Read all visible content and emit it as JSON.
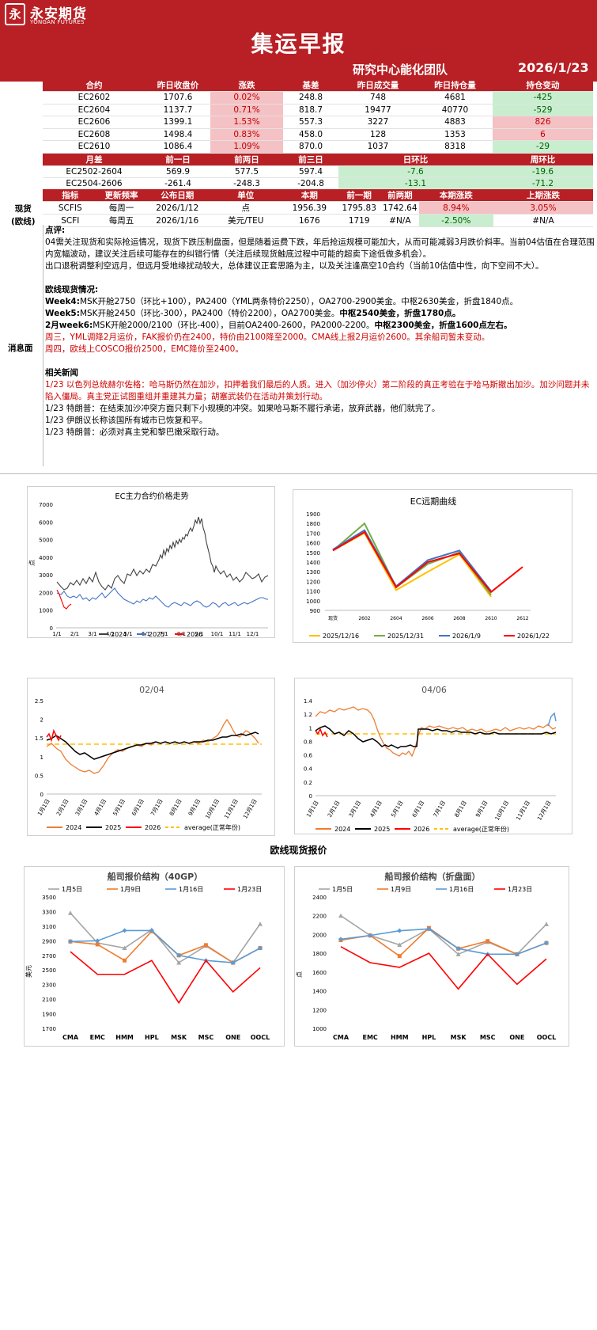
{
  "header": {
    "logo_mark": "永",
    "logo_cn": "永安期货",
    "logo_en": "YONGAN FUTURES",
    "title": "集运早报",
    "team": "研究中心能化团队",
    "date": "2026/1/23"
  },
  "contracts": {
    "headers": [
      "合约",
      "昨日收盘价",
      "涨跌",
      "基差",
      "昨日成交量",
      "昨日持仓量",
      "持仓变动"
    ],
    "rows": [
      [
        "EC2602",
        "1707.6",
        "0.02%",
        "248.8",
        "748",
        "4681",
        "-425"
      ],
      [
        "EC2604",
        "1137.7",
        "0.71%",
        "818.7",
        "19477",
        "40770",
        "-529"
      ],
      [
        "EC2606",
        "1399.1",
        "1.53%",
        "557.3",
        "3227",
        "4883",
        "826"
      ],
      [
        "EC2608",
        "1498.4",
        "0.83%",
        "458.0",
        "128",
        "1353",
        "6"
      ],
      [
        "EC2610",
        "1086.4",
        "1.09%",
        "870.0",
        "1037",
        "8318",
        "-29"
      ]
    ]
  },
  "spreads": {
    "headers": [
      "月差",
      "前一日",
      "前两日",
      "前三日",
      "日环比",
      "周环比"
    ],
    "rows": [
      [
        "EC2502-2604",
        "569.9",
        "577.5",
        "597.4",
        "-7.6",
        "-19.6"
      ],
      [
        "EC2504-2606",
        "-261.4",
        "-248.3",
        "-204.8",
        "-13.1",
        "-71.2"
      ]
    ]
  },
  "spot": {
    "label_line1": "现货",
    "label_line2": "(欧线)",
    "headers": [
      "指标",
      "更新频率",
      "公布日期",
      "单位",
      "本期",
      "前一期",
      "前两期",
      "本期涨跌",
      "上期涨跌"
    ],
    "rows": [
      [
        "SCFIS",
        "每周一",
        "2026/1/12",
        "点",
        "1956.39",
        "1795.83",
        "1742.64",
        "8.94%",
        "3.05%"
      ],
      [
        "SCFI",
        "每周五",
        "2026/1/16",
        "美元/TEU",
        "1676",
        "1719",
        "#N/A",
        "-2.50%",
        "#N/A"
      ]
    ]
  },
  "comment_label": "消息面",
  "comment": {
    "title": "点评:",
    "p1": "04需关注现货和实际抢运情况，现货下跌压制盘面，但是随着运费下跌，年后抢运规模可能加大，从而可能减弱3月跌价斜率。当前04估值在合理范围内宽幅波动，建议关注后续可能存在的纠错行情（关注后续现货触底过程中可能的超卖下途低做多机会）。",
    "p2": "出口退税调整利空远月，但远月受地缘扰动较大，总体建议正套思路为主，以及关注逢高空10合约（当前10估值中性，向下空间不大）。",
    "spot_title": "欧线现货情况:",
    "w4_label": "Week4:",
    "w4": "MSK开舱2750（环比+100），PA2400（YML两条特价2250），OA2700-2900美金。中枢2630美金，折盘1840点。",
    "w5_label": "Week5:",
    "w5": "MSK开舱2450（环比-300），PA2400（特价2200），OA2700美金。",
    "w5_bold": "中枢2540美金，折盘1780点。",
    "w6_label": "2月week6:",
    "w6": "MSK开舱2000/2100（环比-400），目前OA2400-2600，PA2000-2200。",
    "w6_bold": "中枢2300美金，折盘1600点左右。",
    "red1": "周三，YML调降2月运价，FAK报价仍在2400，特价由2100降至2000。CMA线上报2月运价2600。其余船司暂未变动。",
    "red2": "周四，欧线上COSCO报价2500，EMC降价至2400。",
    "news_title": "相关新闻",
    "news_red": "1/23 以色列总统赫尔佐格：哈马斯仍然在加沙，扣押着我们最后的人质。进入（加沙停火）第二阶段的真正考验在于哈马斯撤出加沙。加沙问题并未陷入僵局。真主党正试图重组并重建其力量；胡塞武装仍在活动并策划行动。",
    "news1": "1/23 特朗普：在结束加沙冲突方面只剩下小规模的冲突。如果哈马斯不履行承诺，放弃武器，他们就完了。",
    "news2": "1/23 伊朗议长称该国所有城市已恢复和平。",
    "news3": "1/23 特朗普：必须对真主党和黎巴嫩采取行动。"
  },
  "charts": {
    "c1": {
      "title": "EC主力合约价格走势",
      "ylabel": "点",
      "yticks": [
        "0",
        "1000",
        "2000",
        "3000",
        "4000",
        "5000",
        "6000",
        "7000"
      ],
      "xticks": [
        "1/1",
        "2/1",
        "3/1",
        "4/1",
        "5/1",
        "6/1",
        "7/1",
        "8/1",
        "9/1",
        "10/1",
        "11/1",
        "12/1"
      ],
      "legend": [
        "2024",
        "2025",
        "2026"
      ],
      "colors": [
        "#404040",
        "#4472c4",
        "#ff0000"
      ]
    },
    "c2": {
      "title": "EC远期曲线",
      "yticks": [
        "900",
        "1000",
        "1100",
        "1200",
        "1300",
        "1400",
        "1500",
        "1600",
        "1700",
        "1800",
        "1900"
      ],
      "xticks": [
        "现货",
        "2602",
        "2604",
        "2606",
        "2608",
        "2610",
        "2612"
      ],
      "legend": [
        "2025/12/16",
        "2025/12/31",
        "2026/1/9",
        "2026/1/22"
      ],
      "colors": [
        "#ffc000",
        "#70ad47",
        "#4472c4",
        "#ff0000"
      ]
    },
    "c3": {
      "title": "02/04",
      "yticks": [
        "0",
        "0.5",
        "1",
        "1.5",
        "2",
        "2.5"
      ],
      "legend": [
        "2024",
        "2025",
        "2026",
        "average(正常年份)"
      ],
      "colors": [
        "#ed7d31",
        "#000000",
        "#ff0000",
        "#ffc000"
      ]
    },
    "c4": {
      "title": "04/06",
      "yticks": [
        "0",
        "0.2",
        "0.4",
        "0.6",
        "0.8",
        "1",
        "1.2",
        "1.4"
      ],
      "legend": [
        "2024",
        "2025",
        "2026",
        "average(正常年份)"
      ],
      "colors": [
        "#ed7d31",
        "#000000",
        "#ff0000",
        "#ffc000"
      ]
    },
    "month_ticks": [
      "1月1日",
      "2月1日",
      "3月1日",
      "4月1日",
      "5月1日",
      "6月1日",
      "7月1日",
      "8月1日",
      "9月1日",
      "10月1日",
      "11月1日",
      "12月1日"
    ],
    "section_title": "欧线现货报价",
    "c5": {
      "title": "船司报价结构（40GP）",
      "ylabel": "美元",
      "yticks": [
        "1700",
        "1900",
        "2100",
        "2300",
        "2500",
        "2700",
        "2900",
        "3100",
        "3300",
        "3500"
      ],
      "carriers": [
        "CMA",
        "EMC",
        "HMM",
        "HPL",
        "MSK",
        "MSC",
        "ONE",
        "OOCL"
      ],
      "legend": [
        "1月5日",
        "1月9日",
        "1月16日",
        "1月23日"
      ],
      "colors": [
        "#a5a5a5",
        "#ed7d31",
        "#5b9bd5",
        "#ff0000"
      ]
    },
    "c6": {
      "title": "船司报价结构（折盘面）",
      "ylabel": "点",
      "yticks": [
        "1000",
        "1200",
        "1400",
        "1600",
        "1800",
        "2000",
        "2200",
        "2400"
      ],
      "carriers": [
        "CMA",
        "EMC",
        "HMM",
        "HPL",
        "MSK",
        "MSC",
        "ONE",
        "OOCL"
      ],
      "legend": [
        "1月5日",
        "1月9日",
        "1月16日",
        "1月23日"
      ],
      "colors": [
        "#a5a5a5",
        "#ed7d31",
        "#5b9bd5",
        "#ff0000"
      ]
    }
  },
  "chart_data": [
    {
      "type": "line",
      "title": "EC远期曲线",
      "categories": [
        "现货",
        "2602",
        "2604",
        "2606",
        "2608",
        "2610",
        "2612"
      ],
      "ylim": [
        900,
        1900
      ],
      "series": [
        {
          "name": "2025/12/16",
          "values": [
            1520,
            1700,
            1110,
            1300,
            1480,
            1040,
            null
          ]
        },
        {
          "name": "2025/12/31",
          "values": [
            1520,
            1800,
            1140,
            1380,
            1500,
            1060,
            null
          ]
        },
        {
          "name": "2026/1/9",
          "values": [
            1530,
            1730,
            1150,
            1420,
            1520,
            1100,
            null
          ]
        },
        {
          "name": "2026/1/22",
          "values": [
            1520,
            1710,
            1140,
            1400,
            1490,
            1090,
            1350
          ]
        }
      ]
    },
    {
      "type": "line",
      "title": "船司报价结构（40GP）",
      "categories": [
        "CMA",
        "EMC",
        "HMM",
        "HPL",
        "MSK",
        "MSC",
        "ONE",
        "OOCL"
      ],
      "ylim": [
        1700,
        3500
      ],
      "series": [
        {
          "name": "1月5日",
          "values": [
            3280,
            2870,
            2800,
            3050,
            2600,
            2830,
            2600,
            3130
          ]
        },
        {
          "name": "1月9日",
          "values": [
            2890,
            2850,
            2630,
            3030,
            2700,
            2840,
            2600,
            2800
          ]
        },
        {
          "name": "1月16日",
          "values": [
            2890,
            2900,
            3040,
            3040,
            2700,
            2630,
            2600,
            2800
          ]
        },
        {
          "name": "1月23日",
          "values": [
            2750,
            2440,
            2440,
            2630,
            2050,
            2630,
            2200,
            2530
          ]
        }
      ]
    },
    {
      "type": "line",
      "title": "船司报价结构（折盘面）",
      "categories": [
        "CMA",
        "EMC",
        "HMM",
        "HPL",
        "MSK",
        "MSC",
        "ONE",
        "OOCL"
      ],
      "ylim": [
        1000,
        2400
      ],
      "series": [
        {
          "name": "1月5日",
          "values": [
            2200,
            1990,
            1890,
            2060,
            1790,
            1920,
            1790,
            2110
          ]
        },
        {
          "name": "1月9日",
          "values": [
            1940,
            1990,
            1770,
            2070,
            1850,
            1930,
            1790,
            1910
          ]
        },
        {
          "name": "1月16日",
          "values": [
            1950,
            1990,
            2040,
            2060,
            1850,
            1790,
            1790,
            1910
          ]
        },
        {
          "name": "1月23日",
          "values": [
            1870,
            1700,
            1650,
            1800,
            1420,
            1790,
            1470,
            1740
          ]
        }
      ]
    }
  ]
}
